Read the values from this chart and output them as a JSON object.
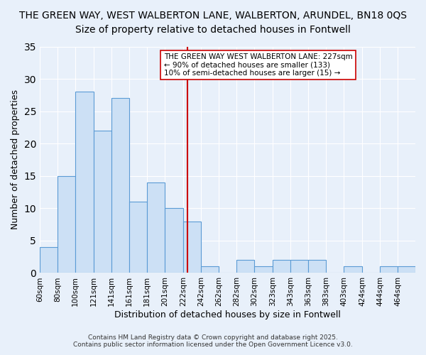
{
  "title1": "THE GREEN WAY, WEST WALBERTON LANE, WALBERTON, ARUNDEL, BN18 0QS",
  "title2": "Size of property relative to detached houses in Fontwell",
  "xlabel": "Distribution of detached houses by size in Fontwell",
  "ylabel": "Number of detached properties",
  "bar_labels": [
    "60sqm",
    "80sqm",
    "100sqm",
    "121sqm",
    "141sqm",
    "161sqm",
    "181sqm",
    "201sqm",
    "222sqm",
    "242sqm",
    "262sqm",
    "282sqm",
    "302sqm",
    "323sqm",
    "343sqm",
    "363sqm",
    "383sqm",
    "403sqm",
    "424sqm",
    "444sqm",
    "464sqm"
  ],
  "bar_values": [
    4,
    15,
    28,
    22,
    27,
    11,
    14,
    10,
    8,
    1,
    0,
    2,
    1,
    2,
    2,
    2,
    0,
    1,
    0,
    1,
    1
  ],
  "bin_edges": [
    60,
    80,
    100,
    121,
    141,
    161,
    181,
    201,
    222,
    242,
    262,
    282,
    302,
    323,
    343,
    363,
    383,
    403,
    424,
    444,
    464,
    484
  ],
  "bar_color": "#cce0f5",
  "bar_edge_color": "#5b9bd5",
  "vline_x": 227,
  "vline_color": "#cc0000",
  "annotation_line1": "THE GREEN WAY WEST WALBERTON LANE: 227sqm",
  "annotation_line2": "← 90% of detached houses are smaller (133)",
  "annotation_line3": "10% of semi-detached houses are larger (15) →",
  "annotation_box_color": "#ffffff",
  "annotation_border_color": "#cc0000",
  "ylim": [
    0,
    35
  ],
  "yticks": [
    0,
    5,
    10,
    15,
    20,
    25,
    30,
    35
  ],
  "bg_color": "#e8f0fa",
  "footer1": "Contains HM Land Registry data © Crown copyright and database right 2025.",
  "footer2": "Contains public sector information licensed under the Open Government Licence v3.0.",
  "title1_fontsize": 10,
  "title2_fontsize": 10,
  "xlabel_fontsize": 9,
  "ylabel_fontsize": 9
}
